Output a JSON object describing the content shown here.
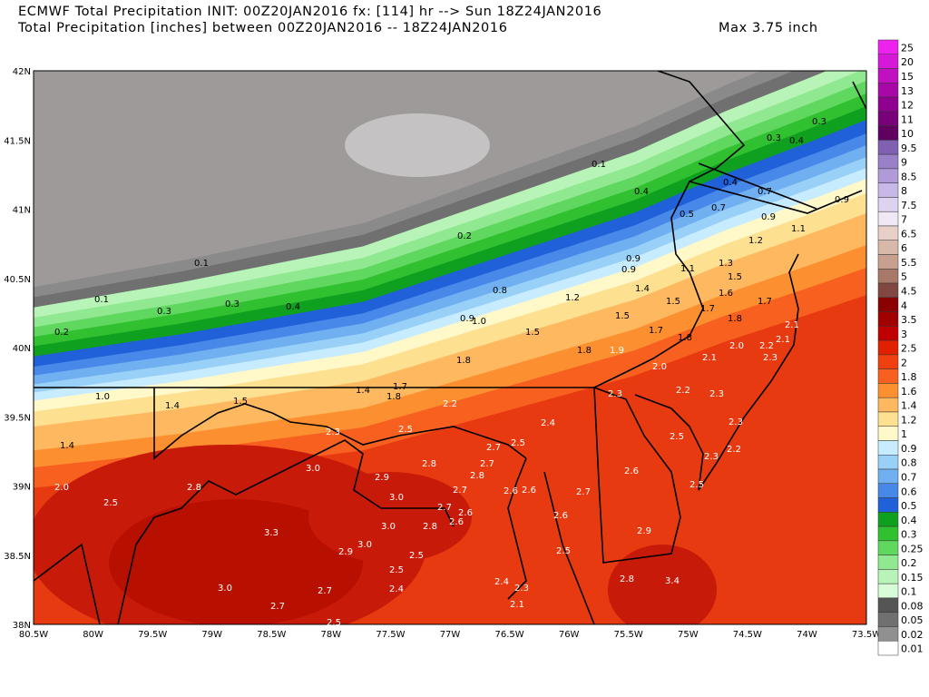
{
  "header": {
    "line1": "ECMWF Total Precipitation INIT: 00Z20JAN2016 fx: [114] hr --> Sun 18Z24JAN2016",
    "line2": "Total Precipitation [inches] between 00Z20JAN2016 -- 18Z24JAN2016",
    "max": "Max 3.75 inch"
  },
  "axes": {
    "lat_labels": [
      "42N",
      "41.5N",
      "41N",
      "40.5N",
      "40N",
      "39.5N",
      "39N",
      "38.5N",
      "38N"
    ],
    "lon_labels": [
      "80.5W",
      "80W",
      "79.5W",
      "79W",
      "78.5W",
      "78W",
      "77.5W",
      "77W",
      "76.5W",
      "76W",
      "75.5W",
      "75W",
      "74.5W",
      "74W",
      "73.5W"
    ]
  },
  "colorbar": {
    "labels": [
      "25",
      "20",
      "15",
      "13",
      "12",
      "11",
      "10",
      "9.5",
      "9",
      "8.5",
      "8",
      "7.5",
      "7",
      "6.5",
      "6",
      "5.5",
      "5",
      "4.5",
      "4",
      "3.5",
      "3",
      "2.5",
      "2",
      "1.8",
      "1.6",
      "1.4",
      "1.2",
      "1",
      "0.9",
      "0.8",
      "0.7",
      "0.6",
      "0.5",
      "0.4",
      "0.3",
      "0.25",
      "0.2",
      "0.15",
      "0.1",
      "0.08",
      "0.05",
      "0.02",
      "0.01"
    ],
    "colors": [
      "#ee22ee",
      "#d818d8",
      "#c010c0",
      "#a808a8",
      "#900090",
      "#780078",
      "#600060",
      "#8060b0",
      "#9a80c8",
      "#b09ad8",
      "#c8b8e8",
      "#ddd2f0",
      "#f0e8f4",
      "#e8d0c8",
      "#d8b8a8",
      "#c8a090",
      "#a87868",
      "#804840",
      "#8b0000",
      "#a00000",
      "#c00000",
      "#e02000",
      "#f04010",
      "#f86020",
      "#fc9030",
      "#fdb860",
      "#fde090",
      "#fff8c8",
      "#c8ecff",
      "#98d0f8",
      "#70b0f0",
      "#4888e8",
      "#2060d8",
      "#10a020",
      "#30c030",
      "#60d860",
      "#90e890",
      "#b8f4b8",
      "#d8fcd8",
      "#555555",
      "#707070",
      "#909090",
      "#ffffff"
    ]
  },
  "map": {
    "labels": [
      "0.1",
      "0.4",
      "0.4",
      "0.3",
      "0.4",
      "0.3",
      "0.7",
      "0.5",
      "0.7",
      "0.9",
      "0.9",
      "1.1",
      "1.2",
      "1.1",
      "1.3",
      "1.5",
      "1.6",
      "1.7",
      "1.8",
      "1.7",
      "1.5",
      "0.2",
      "0.1",
      "0.1",
      "0.3",
      "0.3",
      "0.4",
      "0.2",
      "0.9",
      "0.9",
      "0.8",
      "1.2",
      "1.4",
      "1.5",
      "0.9",
      "1.0",
      "1.5",
      "1.7",
      "1.8",
      "1.8",
      "1.9",
      "2.0",
      "2.2",
      "2.1",
      "2.1",
      "2.3",
      "2.0",
      "2.1",
      "1.8",
      "1.0",
      "1.4",
      "1.5",
      "1.4",
      "1.7",
      "1.8",
      "2.2",
      "2.3",
      "2.2",
      "2.3",
      "2.4",
      "2.3",
      "2.5",
      "2.7",
      "2.5",
      "2.3",
      "2.5",
      "2.2",
      "2.3",
      "1.4",
      "2.0",
      "2.5",
      "2.8",
      "3.0",
      "2.9",
      "2.8",
      "2.8",
      "2.7",
      "2.6",
      "2.5",
      "3.0",
      "2.7",
      "2.6",
      "2.6",
      "2.7",
      "2.7",
      "2.6",
      "2.8",
      "2.6",
      "2.6",
      "3.0",
      "3.3",
      "2.9",
      "3.0",
      "2.9",
      "2.5",
      "2.5",
      "2.5",
      "2.8",
      "3.4",
      "3.0",
      "2.4",
      "2.7",
      "2.4",
      "2.3",
      "2.1",
      "2.7",
      "2.5"
    ]
  }
}
